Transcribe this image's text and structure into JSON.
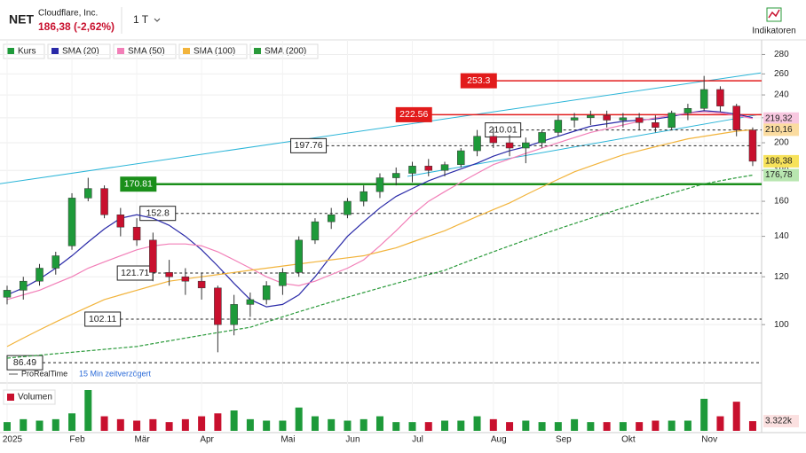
{
  "header": {
    "symbol": "NET",
    "company": "Cloudflare, Inc.",
    "price": "186,38 (-2,62%)",
    "interval": "1 T",
    "indicators": "Indikatoren"
  },
  "chart_data": {
    "type": "candlestick",
    "log_scale": true,
    "grid": true,
    "up_color": "#1e9a3a",
    "down_color": "#c8102e",
    "categories": [
      "2025",
      null,
      null,
      null,
      "Feb",
      null,
      null,
      null,
      "Mär",
      null,
      null,
      null,
      "Apr",
      null,
      null,
      null,
      null,
      "Mai",
      null,
      null,
      null,
      "Jun",
      null,
      null,
      null,
      "Jul",
      null,
      null,
      null,
      null,
      "Aug",
      null,
      null,
      null,
      "Sep",
      null,
      null,
      null,
      "Okt",
      null,
      null,
      null,
      null,
      "Nov",
      null,
      null,
      null
    ],
    "name": "Kurs",
    "open": [
      111,
      114,
      118,
      124,
      135,
      162,
      168,
      152,
      145,
      138,
      122,
      120,
      118,
      115,
      100,
      108,
      110,
      116,
      122,
      138,
      148,
      152,
      160,
      166,
      175,
      178,
      183,
      180,
      184,
      194,
      205,
      200,
      196,
      200,
      208,
      218,
      220,
      222,
      218,
      220,
      216,
      212,
      224,
      228,
      245,
      230,
      210
    ],
    "high": [
      116,
      120,
      126,
      132,
      165,
      175,
      170,
      156,
      150,
      142,
      128,
      124,
      122,
      116,
      112,
      113,
      118,
      124,
      140,
      150,
      156,
      162,
      170,
      178,
      182,
      186,
      188,
      186,
      196,
      210,
      212,
      206,
      204,
      210,
      222,
      224,
      226,
      226,
      224,
      224,
      222,
      226,
      232,
      258,
      248,
      232,
      212
    ],
    "low": [
      108,
      110,
      116,
      121,
      133,
      160,
      150,
      140,
      135,
      118,
      116,
      112,
      110,
      90,
      96,
      103,
      108,
      112,
      120,
      136,
      144,
      150,
      157,
      162,
      170,
      172,
      176,
      176,
      182,
      190,
      196,
      190,
      185,
      196,
      205,
      212,
      214,
      212,
      212,
      210,
      208,
      210,
      218,
      226,
      225,
      205,
      183
    ],
    "close": [
      114,
      118,
      124,
      130,
      162,
      168,
      152,
      145,
      138,
      122,
      120,
      118,
      115,
      100,
      108,
      110,
      116,
      122,
      138,
      148,
      152,
      160,
      166,
      175,
      178,
      183,
      180,
      184,
      194,
      205,
      200,
      196,
      200,
      208,
      218,
      220,
      222,
      218,
      220,
      216,
      212,
      224,
      228,
      245,
      230,
      210,
      186.38
    ],
    "close_labels": [
      null,
      null,
      null,
      null,
      null,
      null,
      null,
      null,
      null,
      null,
      null,
      null,
      null,
      null,
      null,
      null,
      null,
      null,
      null,
      null,
      null,
      null,
      null,
      null,
      null,
      null,
      null,
      null,
      null,
      null,
      null,
      null,
      null,
      null,
      null,
      null,
      null,
      null,
      null,
      null,
      null,
      null,
      null,
      null,
      null,
      null,
      "186,38"
    ],
    "label_color": "#f7e25a",
    "ylim": [
      80.6,
      296
    ],
    "yticks": [
      100,
      120,
      140,
      160,
      180,
      200,
      220,
      240,
      260,
      280
    ],
    "series": [
      {
        "name": "SMA (20)",
        "color": "#2a2aa8",
        "dash": false,
        "values": [
          112,
          115,
          119,
          124,
          130,
          137,
          144,
          150,
          152,
          150,
          146,
          140,
          133,
          125,
          117,
          110,
          107,
          108,
          112,
          120,
          130,
          140,
          148,
          156,
          163,
          168,
          173,
          177,
          181,
          185,
          190,
          194,
          197,
          201,
          205,
          209,
          213,
          215,
          217,
          218,
          219,
          221,
          224,
          226,
          225,
          223,
          220
        ]
      },
      {
        "name": "SMA (50)",
        "color": "#f27fb8",
        "dash": false,
        "values": [
          110,
          112,
          114,
          117,
          120,
          124,
          127,
          130,
          133,
          135,
          136,
          136,
          135,
          132,
          128,
          124,
          120,
          117,
          116,
          118,
          121,
          124,
          128,
          135,
          143,
          152,
          160,
          166,
          172,
          178,
          184,
          188,
          192,
          196,
          200,
          204,
          208,
          211,
          214,
          217,
          220,
          222,
          224,
          225,
          224,
          222,
          219.32
        ],
        "value_labels": [
          null,
          null,
          null,
          null,
          null,
          null,
          null,
          null,
          null,
          null,
          null,
          null,
          null,
          null,
          null,
          null,
          null,
          null,
          null,
          null,
          null,
          null,
          null,
          null,
          null,
          null,
          null,
          null,
          null,
          null,
          null,
          null,
          null,
          null,
          null,
          null,
          null,
          null,
          null,
          null,
          null,
          null,
          null,
          null,
          null,
          null,
          "219,32"
        ],
        "label_color": "#f8c8e0"
      },
      {
        "name": "SMA (100)",
        "color": "#f2b43c",
        "dash": false,
        "values": [
          92,
          95,
          98,
          101,
          104,
          107,
          110,
          112,
          114,
          116,
          118,
          119,
          120,
          121,
          122,
          123,
          124,
          125,
          126,
          127,
          128,
          129,
          130,
          132,
          134,
          137,
          140,
          143,
          147,
          151,
          155,
          159,
          164,
          169,
          174,
          179,
          183,
          187,
          191,
          194,
          197,
          200,
          203,
          205,
          207,
          209,
          210.16
        ],
        "value_labels": [
          null,
          null,
          null,
          null,
          null,
          null,
          null,
          null,
          null,
          null,
          null,
          null,
          null,
          null,
          null,
          null,
          null,
          null,
          null,
          null,
          null,
          null,
          null,
          null,
          null,
          null,
          null,
          null,
          null,
          null,
          null,
          null,
          null,
          null,
          null,
          null,
          null,
          null,
          null,
          null,
          null,
          null,
          null,
          null,
          null,
          null,
          "210,16"
        ],
        "label_color": "#fbdca0"
      },
      {
        "name": "SMA (200)",
        "color": "#2a9a3a",
        "dash": true,
        "values": [
          88,
          88.5,
          89,
          89.5,
          90,
          90.5,
          91,
          91.5,
          92,
          93,
          94,
          95,
          96,
          97,
          98,
          99,
          101,
          103,
          105,
          107,
          109,
          111,
          113,
          115,
          117,
          119,
          121,
          123,
          126,
          129,
          132,
          135,
          138,
          141,
          144,
          147,
          150,
          153,
          156,
          159,
          162,
          165,
          168,
          171,
          173,
          175,
          176.78
        ],
        "value_labels": [
          null,
          null,
          null,
          null,
          null,
          null,
          null,
          null,
          null,
          null,
          null,
          null,
          null,
          null,
          null,
          null,
          null,
          null,
          null,
          null,
          null,
          null,
          null,
          null,
          null,
          null,
          null,
          null,
          null,
          null,
          null,
          null,
          null,
          null,
          null,
          null,
          null,
          null,
          null,
          null,
          null,
          null,
          null,
          null,
          null,
          null,
          "176,78"
        ],
        "label_color": "#b8e6b0"
      }
    ],
    "levels": [
      {
        "value": 253.3,
        "from": 28,
        "color": "#e21b1b",
        "style": "solid"
      },
      {
        "value": 222.56,
        "from": 24,
        "color": "#e21b1b",
        "style": "solid"
      },
      {
        "value": 170.81,
        "from": 7,
        "color": "#1a8f1a",
        "style": "thick"
      },
      {
        "value": 210.01,
        "from": 29.5,
        "color": "#222",
        "style": "dashed"
      },
      {
        "value": 197.76,
        "from": 17.5,
        "color": "#222",
        "style": "dashed"
      },
      {
        "value": 152.8,
        "from": 8.2,
        "color": "#222",
        "style": "dashed"
      },
      {
        "value": 121.71,
        "from": 6.8,
        "color": "#222",
        "style": "dashed"
      },
      {
        "value": 102.11,
        "from": 4.8,
        "color": "#222",
        "style": "dashed"
      },
      {
        "value": 86.49,
        "from": 0,
        "color": "#222",
        "style": "dashed"
      }
    ],
    "trendlines": [
      {
        "x": [
          -0.5,
          46.5
        ],
        "y": [
          171,
          261
        ],
        "color": "#2bb5d8"
      },
      {
        "x": [
          24.7,
          46.5
        ],
        "y": [
          176,
          223
        ],
        "color": "#2bb5d8"
      }
    ],
    "source": "ProRealTime",
    "delay": "15 Min zeitverzögert",
    "volume": {
      "name": "Volumen",
      "ylim": [
        0,
        14
      ],
      "values": [
        3,
        4,
        3.5,
        4,
        6,
        14,
        5,
        4,
        3.5,
        4,
        3,
        4,
        5,
        6,
        7,
        4,
        3.5,
        3.5,
        8,
        5,
        4,
        3.5,
        4,
        5,
        3,
        3,
        3,
        3.5,
        3.5,
        5,
        4,
        3,
        3.5,
        3,
        3,
        4,
        3,
        3,
        3,
        3,
        3.5,
        3.5,
        3.5,
        11,
        5,
        10,
        3.322
      ],
      "value_labels": [
        null,
        null,
        null,
        null,
        null,
        null,
        null,
        null,
        null,
        null,
        null,
        null,
        null,
        null,
        null,
        null,
        null,
        null,
        null,
        null,
        null,
        null,
        null,
        null,
        null,
        null,
        null,
        null,
        null,
        null,
        null,
        null,
        null,
        null,
        null,
        null,
        null,
        null,
        null,
        null,
        null,
        null,
        null,
        null,
        null,
        null,
        "3.322k"
      ]
    }
  }
}
